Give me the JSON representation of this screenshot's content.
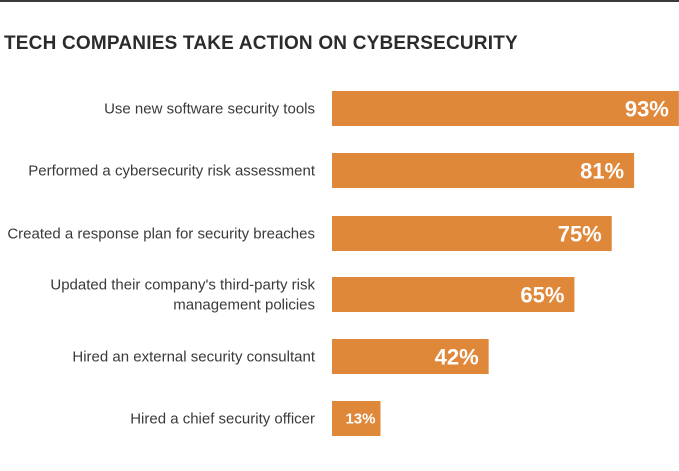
{
  "title": "TECH COMPANIES TAKE ACTION ON CYBERSECURITY",
  "colors": {
    "bar": "#E0883A",
    "title": "#2b2b2b",
    "label": "#3a3a3a",
    "value_text": "#ffffff"
  },
  "chart_data": {
    "type": "bar",
    "orientation": "horizontal",
    "title": "TECH COMPANIES TAKE ACTION ON CYBERSECURITY",
    "categories": [
      [
        "Use new software security tools"
      ],
      [
        "Performed a cybersecurity risk assessment"
      ],
      [
        "Created a response plan for security breaches"
      ],
      [
        "Updated their company's third-party risk",
        "management policies"
      ],
      [
        "Hired an external security consultant"
      ],
      [
        "Hired a chief security officer"
      ]
    ],
    "values": [
      93,
      81,
      75,
      65,
      42,
      13
    ],
    "value_labels": [
      "93%",
      "81%",
      "75%",
      "65%",
      "42%",
      "13%"
    ],
    "xlim": [
      0,
      100
    ],
    "grid": false,
    "legend": "none"
  }
}
